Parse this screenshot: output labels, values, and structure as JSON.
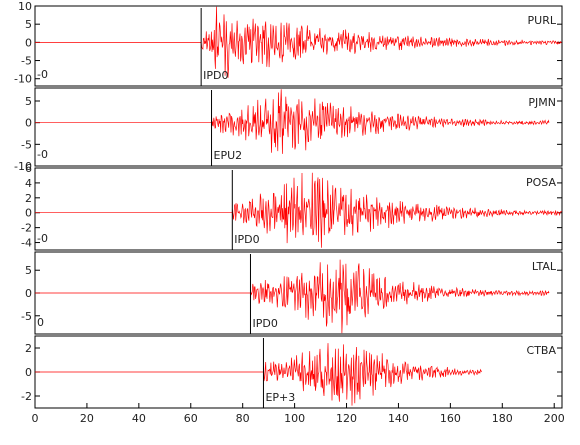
{
  "chart_data": {
    "type": "line",
    "title": "",
    "xlabel": "",
    "ylabel": "",
    "x_axis": {
      "range": [
        0,
        203
      ],
      "ticks": [
        "0",
        "20",
        "40",
        "60",
        "80",
        "100",
        "120",
        "140",
        "160",
        "180",
        "200"
      ]
    },
    "trace_color": "#ff0000",
    "marker_color": "#000000",
    "grid": false,
    "panels": [
      {
        "station": "PURL",
        "y_range": [
          -12,
          10
        ],
        "y_ticks": [
          "10",
          "5",
          "0",
          "-5",
          "-10"
        ],
        "zero_label": "-0",
        "phase": {
          "label": "IPD0",
          "time": 64
        },
        "signal": {
          "onset": 64,
          "peak_time": 70,
          "peak_amp": 9,
          "end": 203,
          "decay": 45
        }
      },
      {
        "station": "PJMN",
        "y_range": [
          -10,
          8
        ],
        "y_ticks": [
          "5",
          "0",
          "-5",
          "-10"
        ],
        "zero_label": "-0",
        "phase": {
          "label": "EPU2",
          "time": 68
        },
        "signal": {
          "onset": 68,
          "peak_time": 95,
          "peak_amp": 7.5,
          "end": 198,
          "decay": 32
        }
      },
      {
        "station": "POSA",
        "y_range": [
          -5,
          6
        ],
        "y_ticks": [
          "6",
          "4",
          "2",
          "0",
          "-2",
          "-4"
        ],
        "zero_label": "-0",
        "phase": {
          "label": "IPD0",
          "time": 76
        },
        "signal": {
          "onset": 76,
          "peak_time": 105,
          "peak_amp": 5,
          "end": 203,
          "decay": 30
        }
      },
      {
        "station": "LTAL",
        "y_range": [
          -9,
          9
        ],
        "y_ticks": [
          "5",
          "0",
          "-5"
        ],
        "zero_label": "0",
        "phase": {
          "label": "IPD0",
          "time": 83
        },
        "signal": {
          "onset": 83,
          "peak_time": 118,
          "peak_amp": 8,
          "end": 198,
          "decay": 22
        }
      },
      {
        "station": "CTBA",
        "y_range": [
          -3,
          3
        ],
        "y_ticks": [
          "2",
          "0",
          "-2"
        ],
        "zero_label": "",
        "phase": {
          "label": "EP+3",
          "time": 88
        },
        "signal": {
          "onset": 88,
          "peak_time": 122,
          "peak_amp": 2.8,
          "end": 172,
          "decay": 18
        }
      }
    ]
  }
}
